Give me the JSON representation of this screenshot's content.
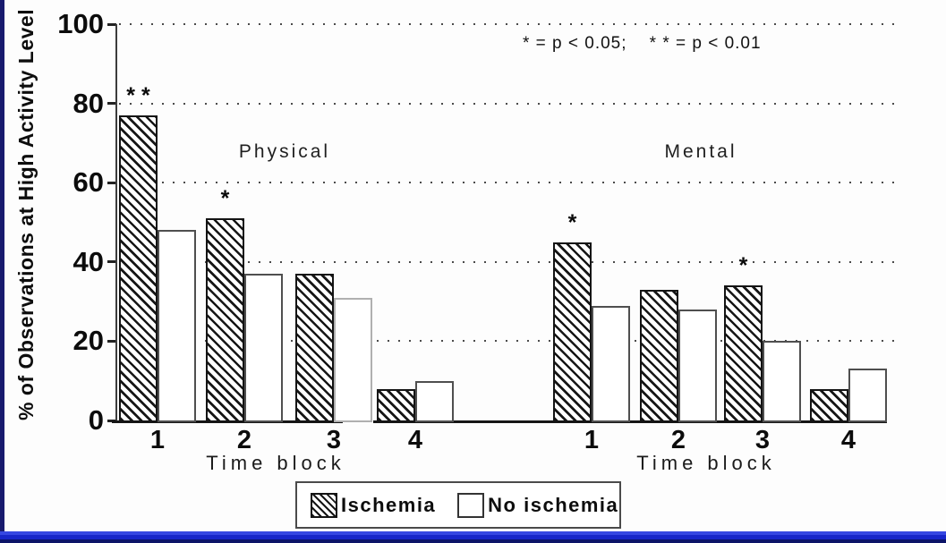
{
  "chart_data": {
    "type": "bar",
    "title": "",
    "ylabel": "% of Observations at High Activity Level",
    "xlabel": "Time block",
    "ylim": [
      0,
      100
    ],
    "yticks": [
      0,
      20,
      40,
      60,
      80,
      100
    ],
    "grid": "dotted horizontal gridlines at 20, 40, 60, 80, 100",
    "legend_position": "bottom-center",
    "series_names": [
      "Ischemia",
      "No ischemia"
    ],
    "panels": [
      {
        "label": "Physical",
        "categories": [
          "1",
          "2",
          "3",
          "4"
        ],
        "series": [
          {
            "name": "Ischemia",
            "values": [
              77,
              51,
              37,
              8
            ]
          },
          {
            "name": "No ischemia",
            "values": [
              48,
              37,
              31,
              10
            ]
          }
        ],
        "significance": [
          "* *",
          "*",
          "",
          ""
        ]
      },
      {
        "label": "Mental",
        "categories": [
          "1",
          "2",
          "3",
          "4"
        ],
        "series": [
          {
            "name": "Ischemia",
            "values": [
              45,
              33,
              34,
              8
            ]
          },
          {
            "name": "No ischemia",
            "values": [
              29,
              28,
              20,
              13
            ]
          }
        ],
        "significance": [
          "*",
          "",
          "*",
          ""
        ]
      }
    ],
    "annotation": "* = p < 0.05;    * * = p < 0.01"
  },
  "legend": {
    "items": [
      {
        "label": "Ischemia",
        "fill": "hatched-diagonal"
      },
      {
        "label": "No ischemia",
        "fill": "white"
      }
    ]
  },
  "colors": {
    "bar_outline": "#141414",
    "background": "#fdfdfd",
    "frame_left": "#181a6e",
    "frame_bottom": "#1726c9"
  }
}
